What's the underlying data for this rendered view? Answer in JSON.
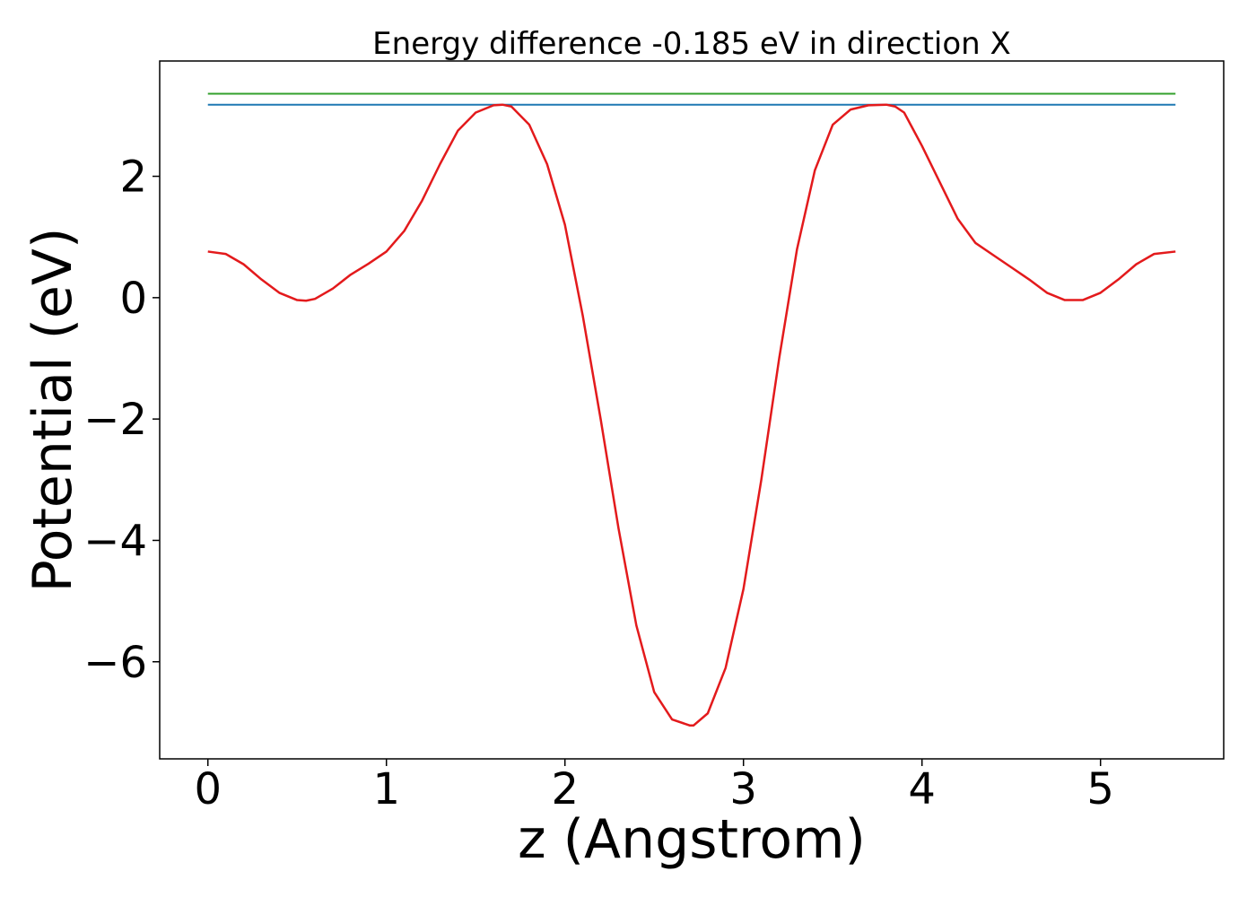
{
  "chart_data": {
    "type": "line",
    "title": "Energy difference -0.185 eV in direction X",
    "xlabel": "z (Angstrom)",
    "ylabel": "Potential (eV)",
    "xlim": [
      -0.27,
      5.69
    ],
    "ylim": [
      -7.6,
      3.9
    ],
    "xticks": [
      0,
      1,
      2,
      3,
      4,
      5
    ],
    "yticks": [
      2,
      0,
      -2,
      -4,
      -6
    ],
    "ytick_labels": [
      "2",
      "0",
      "−2",
      "−4",
      "−6"
    ],
    "grid": false,
    "colors": {
      "potential": "#e31a1c",
      "blue_level": "#1f78b4",
      "green_level": "#33a02c"
    },
    "series": [
      {
        "values_x": [
          0.0,
          0.1,
          0.2,
          0.3,
          0.4,
          0.5,
          0.55,
          0.6,
          0.7,
          0.8,
          0.9,
          1.0,
          1.1,
          1.2,
          1.3,
          1.4,
          1.5,
          1.6,
          1.65,
          1.7,
          1.8,
          1.9,
          2.0,
          2.1,
          2.2,
          2.3,
          2.4,
          2.5,
          2.6,
          2.7,
          2.72,
          2.8,
          2.9,
          3.0,
          3.1,
          3.2,
          3.3,
          3.4,
          3.5,
          3.6,
          3.7,
          3.8,
          3.85,
          3.9,
          4.0,
          4.1,
          4.2,
          4.3,
          4.4,
          4.5,
          4.6,
          4.7,
          4.8,
          4.9,
          5.0,
          5.1,
          5.2,
          5.3,
          5.42
        ],
        "values_y": [
          0.76,
          0.72,
          0.55,
          0.3,
          0.08,
          -0.04,
          -0.05,
          -0.02,
          0.15,
          0.38,
          0.56,
          0.76,
          1.1,
          1.6,
          2.2,
          2.75,
          3.05,
          3.17,
          3.18,
          3.15,
          2.85,
          2.2,
          1.2,
          -0.3,
          -2.0,
          -3.8,
          -5.4,
          -6.5,
          -6.95,
          -7.05,
          -7.05,
          -6.85,
          -6.1,
          -4.8,
          -3.0,
          -1.0,
          0.8,
          2.1,
          2.85,
          3.1,
          3.17,
          3.18,
          3.15,
          3.05,
          2.5,
          1.9,
          1.3,
          0.9,
          0.7,
          0.5,
          0.3,
          0.08,
          -0.04,
          -0.04,
          0.08,
          0.3,
          0.55,
          0.72,
          0.76
        ]
      },
      {
        "values_x": [
          0.0,
          5.42
        ],
        "values_y": [
          3.18,
          3.18
        ]
      },
      {
        "values_x": [
          0.0,
          5.42
        ],
        "values_y": [
          3.36,
          3.36
        ]
      }
    ]
  }
}
